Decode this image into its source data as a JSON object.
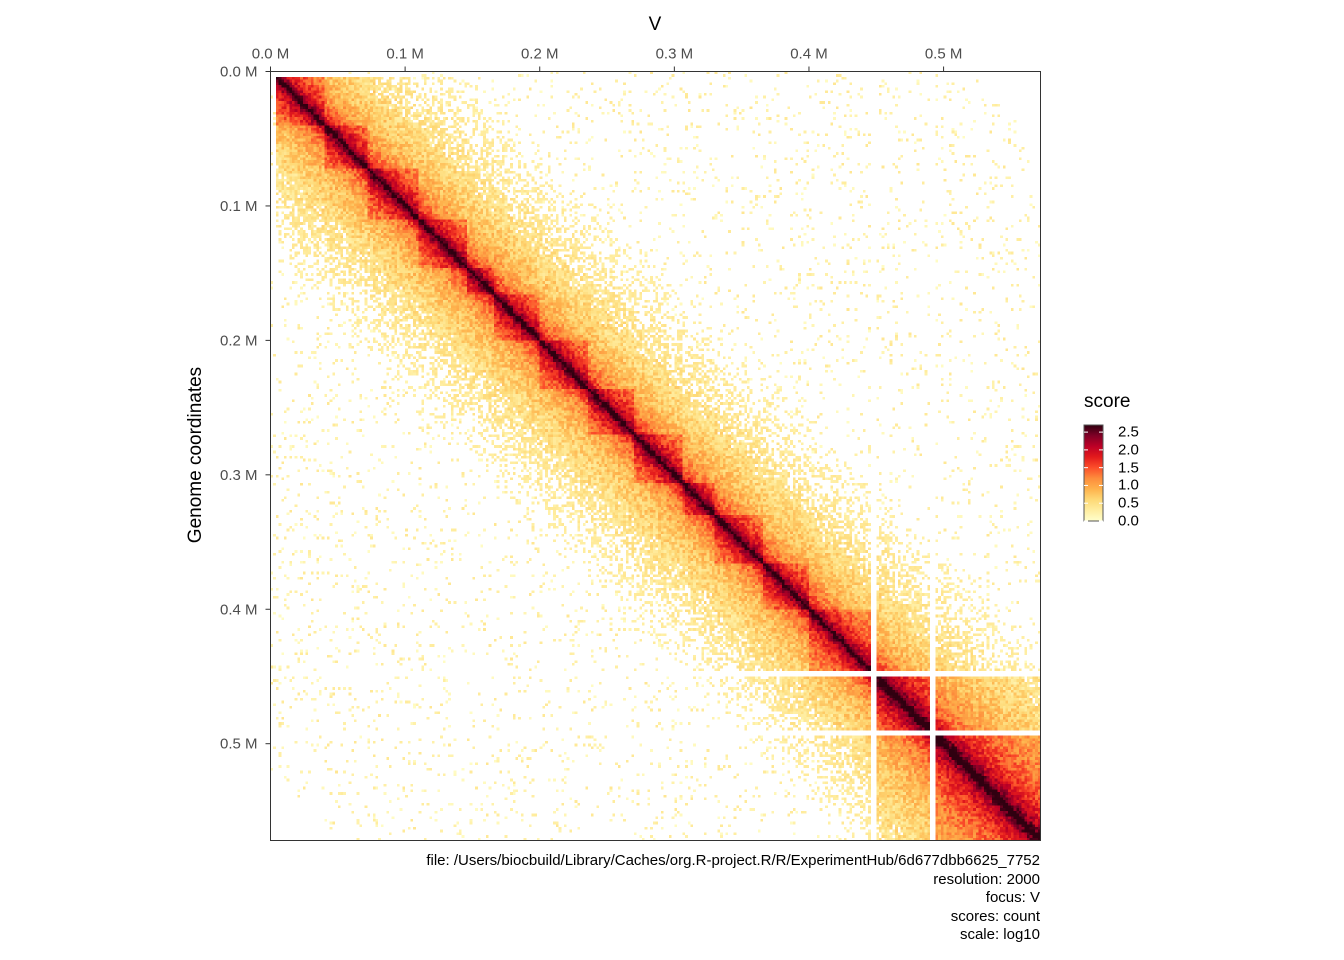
{
  "chart_data": {
    "type": "heatmap",
    "title": "V",
    "ylabel": "Genome coordinates",
    "xlabel": "",
    "x_ticks": [
      "0.0 M",
      "0.1 M",
      "0.2 M",
      "0.3 M",
      "0.4 M",
      "0.5 M"
    ],
    "y_ticks": [
      "0.0 M",
      "0.1 M",
      "0.2 M",
      "0.3 M",
      "0.4 M",
      "0.5 M"
    ],
    "x_range_bp": [
      0,
      572000
    ],
    "y_range_bp": [
      0,
      572000
    ],
    "x_axis_position": "top",
    "y_axis_direction": "reversed",
    "bin_size_bp": 2000,
    "blank_bins_bp": [
      446000,
      448000,
      490000,
      492000
    ],
    "domain_boundaries_bp": [
      0,
      40000,
      72000,
      110000,
      145000,
      165000,
      200000,
      235000,
      270000,
      305000,
      330000,
      365000,
      400000,
      446000,
      490000,
      572000
    ],
    "colorscale": {
      "name": "score",
      "ticks": [
        "2.5",
        "2.0",
        "1.5",
        "1.0",
        "0.5",
        "0.0"
      ],
      "range": [
        0,
        2.7
      ],
      "colors": [
        "#ffffcc",
        "#ffeda0",
        "#fed976",
        "#feb24c",
        "#fd8d3c",
        "#fc4e2a",
        "#e31a1c",
        "#bd0026",
        "#800026",
        "#300010"
      ]
    },
    "legend_position": "right",
    "caption": [
      "file: /Users/biocbuild/Library/Caches/org.R-project.R/R/ExperimentHub/6d677dbb6625_7752",
      "resolution: 2000",
      "focus: V",
      "scores: count",
      "scale: log10"
    ]
  }
}
